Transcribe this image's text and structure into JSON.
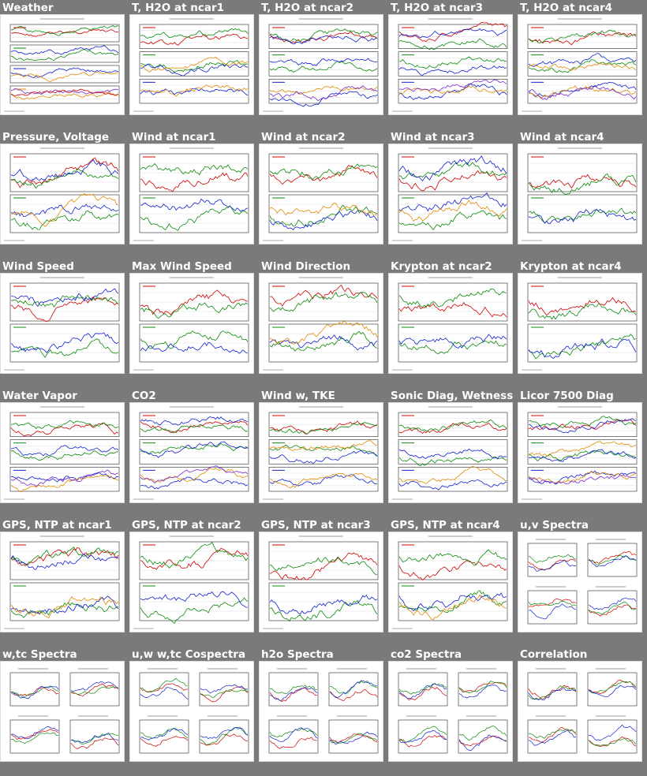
{
  "page": {
    "background": "#7a7a7a",
    "line_colors": [
      "#d00000",
      "#0a8a0a",
      "#1020d0",
      "#e08a00",
      "#7a2ad0"
    ]
  },
  "panels": [
    {
      "title": "Weather",
      "kind": "stack",
      "bands": 4
    },
    {
      "title": "T, H2O at ncar1",
      "kind": "stack",
      "bands": 3
    },
    {
      "title": "T, H2O at ncar2",
      "kind": "stack",
      "bands": 3
    },
    {
      "title": "T, H2O at ncar3",
      "kind": "stack",
      "bands": 3
    },
    {
      "title": "T, H2O at ncar4",
      "kind": "stack",
      "bands": 3
    },
    {
      "title": "Pressure, Voltage",
      "kind": "stack",
      "bands": 2
    },
    {
      "title": "Wind at ncar1",
      "kind": "stack",
      "bands": 2
    },
    {
      "title": "Wind at ncar2",
      "kind": "stack",
      "bands": 2
    },
    {
      "title": "Wind at ncar3",
      "kind": "stack",
      "bands": 2
    },
    {
      "title": "Wind at ncar4",
      "kind": "stack",
      "bands": 2
    },
    {
      "title": "Wind Speed",
      "kind": "stack",
      "bands": 2
    },
    {
      "title": "Max Wind Speed",
      "kind": "stack",
      "bands": 2
    },
    {
      "title": "Wind Direction",
      "kind": "stack",
      "bands": 2
    },
    {
      "title": "Krypton at ncar2",
      "kind": "stack",
      "bands": 2
    },
    {
      "title": "Krypton at ncar4",
      "kind": "stack",
      "bands": 2
    },
    {
      "title": "Water Vapor",
      "kind": "stack",
      "bands": 3
    },
    {
      "title": "CO2",
      "kind": "stack",
      "bands": 3
    },
    {
      "title": "Wind w, TKE",
      "kind": "stack",
      "bands": 3
    },
    {
      "title": "Sonic Diag, Wetness",
      "kind": "stack",
      "bands": 3
    },
    {
      "title": "Licor 7500 Diag",
      "kind": "stack",
      "bands": 3
    },
    {
      "title": "GPS, NTP at ncar1",
      "kind": "stack",
      "bands": 2
    },
    {
      "title": "GPS, NTP at ncar2",
      "kind": "stack",
      "bands": 2
    },
    {
      "title": "GPS, NTP at ncar3",
      "kind": "stack",
      "bands": 2
    },
    {
      "title": "GPS, NTP at ncar4",
      "kind": "stack",
      "bands": 2
    },
    {
      "title": "u,v Spectra",
      "kind": "grid"
    },
    {
      "title": "w,tc Spectra",
      "kind": "grid"
    },
    {
      "title": "u,w w,tc Cospectra",
      "kind": "grid"
    },
    {
      "title": "h2o Spectra",
      "kind": "grid"
    },
    {
      "title": "co2 Spectra",
      "kind": "grid"
    },
    {
      "title": "Correlation",
      "kind": "grid"
    }
  ]
}
